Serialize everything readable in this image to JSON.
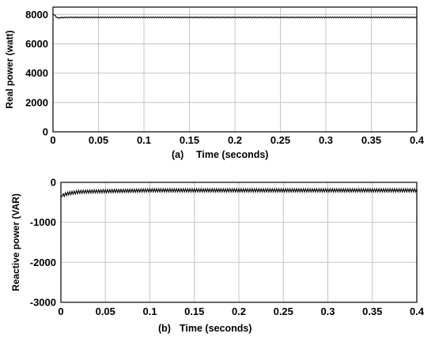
{
  "chart_data": [
    {
      "type": "line",
      "panel_tag": "(a)",
      "xlabel": "Time (seconds)",
      "ylabel": "Real power (watt)",
      "xlim": [
        0,
        0.4
      ],
      "ylim": [
        0,
        8500
      ],
      "x_ticks": [
        "0",
        "0.05",
        "0.1",
        "0.15",
        "0.2",
        "0.25",
        "0.3",
        "0.35",
        "0.4"
      ],
      "y_ticks": [
        "0",
        "2000",
        "4000",
        "6000",
        "8000"
      ],
      "grid": true,
      "series": [
        {
          "x": [
            0,
            0.002,
            0.004,
            0.006,
            0.01,
            0.02,
            0.05,
            0.1,
            0.15,
            0.2,
            0.25,
            0.3,
            0.35,
            0.4
          ],
          "y": [
            8000,
            7950,
            7800,
            7760,
            7790,
            7800,
            7800,
            7800,
            7800,
            7800,
            7800,
            7800,
            7800,
            7800
          ],
          "ripple": 60
        }
      ]
    },
    {
      "type": "line",
      "panel_tag": "(b)",
      "xlabel": "Time (seconds)",
      "ylabel": "Reactive power (VAR)",
      "xlim": [
        0,
        0.4
      ],
      "ylim": [
        -3000,
        0
      ],
      "x_ticks": [
        "0",
        "0.05",
        "0.1",
        "0.15",
        "0.2",
        "0.25",
        "0.3",
        "0.35",
        "0.4"
      ],
      "y_ticks": [
        "0",
        "-1000",
        "-2000",
        "-3000"
      ],
      "grid": true,
      "series": [
        {
          "x": [
            0,
            0.002,
            0.005,
            0.01,
            0.02,
            0.03,
            0.05,
            0.08,
            0.1,
            0.15,
            0.2,
            0.25,
            0.3,
            0.35,
            0.4
          ],
          "y": [
            -380,
            -330,
            -300,
            -270,
            -240,
            -230,
            -220,
            -210,
            -200,
            -200,
            -200,
            -200,
            -200,
            -200,
            -200
          ],
          "ripple": 80
        }
      ]
    }
  ]
}
